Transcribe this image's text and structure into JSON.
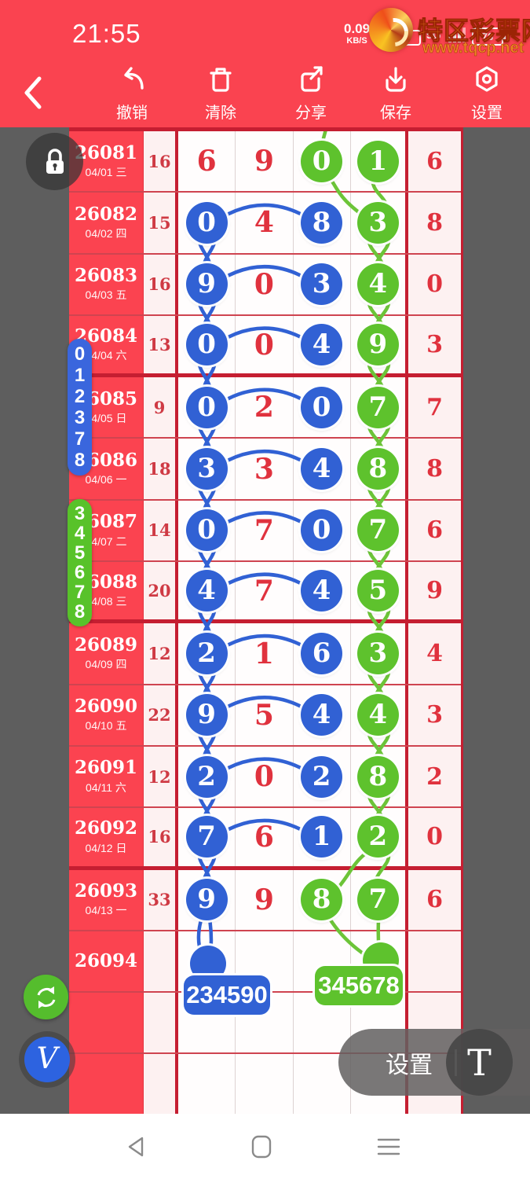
{
  "status_bar": {
    "time": "21:55",
    "net_speed": "0.09",
    "net_speed_unit": "KB/S",
    "network_label": "5G",
    "battery_percent": "76"
  },
  "watermark": {
    "site_name": "特区彩票网",
    "site_url": "www.tqcp.net"
  },
  "toolbar": {
    "items": [
      {
        "label": "撤销",
        "icon": "undo-icon"
      },
      {
        "label": "清除",
        "icon": "trash-icon"
      },
      {
        "label": "分享",
        "icon": "share-icon"
      },
      {
        "label": "保存",
        "icon": "save-icon"
      },
      {
        "label": "设置",
        "icon": "settings-icon"
      }
    ]
  },
  "annotations": {
    "blue_column_badge_digits": [
      "0",
      "1",
      "2",
      "3",
      "7",
      "8"
    ],
    "green_column_badge_digits": [
      "3",
      "4",
      "5",
      "6",
      "7",
      "8"
    ],
    "blue_prediction": "234590",
    "green_prediction": "345678"
  },
  "trend_table": {
    "rows": [
      {
        "period": "26081",
        "date": "04/01 三",
        "sum": "16",
        "digits": [
          "6",
          "9",
          "0",
          "1"
        ],
        "styles": [
          "plain",
          "plain",
          "green",
          "green"
        ],
        "tail": "6"
      },
      {
        "period": "26082",
        "date": "04/02 四",
        "sum": "15",
        "digits": [
          "0",
          "4",
          "8",
          "3"
        ],
        "styles": [
          "blue",
          "plain",
          "blue",
          "green"
        ],
        "tail": "8"
      },
      {
        "period": "26083",
        "date": "04/03 五",
        "sum": "16",
        "digits": [
          "9",
          "0",
          "3",
          "4"
        ],
        "styles": [
          "blue",
          "plain",
          "blue",
          "green"
        ],
        "tail": "0"
      },
      {
        "period": "26084",
        "date": "04/04 六",
        "sum": "13",
        "digits": [
          "0",
          "0",
          "4",
          "9"
        ],
        "styles": [
          "blue",
          "plain",
          "blue",
          "green"
        ],
        "tail": "3"
      },
      {
        "period": "26085",
        "date": "04/05 日",
        "sum": "9",
        "digits": [
          "0",
          "2",
          "0",
          "7"
        ],
        "styles": [
          "blue",
          "plain",
          "blue",
          "green"
        ],
        "tail": "7"
      },
      {
        "period": "26086",
        "date": "04/06 一",
        "sum": "18",
        "digits": [
          "3",
          "3",
          "4",
          "8"
        ],
        "styles": [
          "blue",
          "plain",
          "blue",
          "green"
        ],
        "tail": "8"
      },
      {
        "period": "26087",
        "date": "04/07 二",
        "sum": "14",
        "digits": [
          "0",
          "7",
          "0",
          "7"
        ],
        "styles": [
          "blue",
          "plain",
          "blue",
          "green"
        ],
        "tail": "6"
      },
      {
        "period": "26088",
        "date": "04/08 三",
        "sum": "20",
        "digits": [
          "4",
          "7",
          "4",
          "5"
        ],
        "styles": [
          "blue",
          "plain",
          "blue",
          "green"
        ],
        "tail": "9"
      },
      {
        "period": "26089",
        "date": "04/09 四",
        "sum": "12",
        "digits": [
          "2",
          "1",
          "6",
          "3"
        ],
        "styles": [
          "blue",
          "plain",
          "blue",
          "green"
        ],
        "tail": "4"
      },
      {
        "period": "26090",
        "date": "04/10 五",
        "sum": "22",
        "digits": [
          "9",
          "5",
          "4",
          "4"
        ],
        "styles": [
          "blue",
          "plain",
          "blue",
          "green"
        ],
        "tail": "3"
      },
      {
        "period": "26091",
        "date": "04/11 六",
        "sum": "12",
        "digits": [
          "2",
          "0",
          "2",
          "8"
        ],
        "styles": [
          "blue",
          "plain",
          "blue",
          "green"
        ],
        "tail": "2"
      },
      {
        "period": "26092",
        "date": "04/12 日",
        "sum": "16",
        "digits": [
          "7",
          "6",
          "1",
          "2"
        ],
        "styles": [
          "blue",
          "plain",
          "blue",
          "green"
        ],
        "tail": "0"
      },
      {
        "period": "26093",
        "date": "04/13 一",
        "sum": "33",
        "digits": [
          "9",
          "9",
          "8",
          "7"
        ],
        "styles": [
          "blue",
          "plain",
          "green",
          "green"
        ],
        "tail": "6"
      },
      {
        "period": "26094",
        "date": "",
        "sum": "",
        "digits": [
          "",
          "",
          "",
          ""
        ],
        "styles": [
          "none",
          "none",
          "none",
          "none"
        ],
        "tail": ""
      },
      {
        "period": "",
        "date": "",
        "sum": "",
        "digits": [
          "",
          "",
          "",
          ""
        ],
        "styles": [
          "none",
          "none",
          "none",
          "none"
        ],
        "tail": ""
      },
      {
        "period": "",
        "date": "",
        "sum": "",
        "digits": [
          "",
          "",
          "",
          ""
        ],
        "styles": [
          "none",
          "none",
          "none",
          "none"
        ],
        "tail": ""
      }
    ]
  },
  "bottom_bar": {
    "settings_label": "设置",
    "divider": "|",
    "text_tool_label": "T"
  },
  "colors": {
    "app_red": "#fa4350",
    "dark_red": "#c51e31",
    "digit_red": "#e0323e",
    "blue": "#3161d4",
    "green": "#5ec22d",
    "panel_gray": "#5e5e5e",
    "cell_pink": "#fdf1f1"
  }
}
